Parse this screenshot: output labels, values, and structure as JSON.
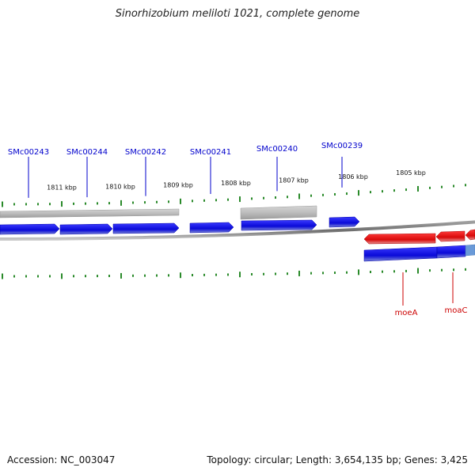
{
  "title": "Sinorhizobium meliloti 1021, complete genome",
  "footer": {
    "accession": "Accession: NC_003047",
    "summary": "Topology: circular; Length: 3,654,135 bp; Genes: 3,425"
  },
  "colors": {
    "forward_gene": "#1a1ae6",
    "reverse_gene": "#e61414",
    "tick": "#2a8a2a",
    "backbone": "#808080",
    "other_feature": "#b8b8b8",
    "label_forward": "#0000cc",
    "label_reverse": "#cc0000"
  },
  "scale_labels": [
    {
      "kbp": 1811,
      "text": "1811 kbp"
    },
    {
      "kbp": 1810,
      "text": "1810 kbp"
    },
    {
      "kbp": 1809,
      "text": "1809 kbp"
    },
    {
      "kbp": 1808,
      "text": "1808 kbp"
    },
    {
      "kbp": 1807,
      "text": "1807 kbp"
    },
    {
      "kbp": 1806,
      "text": "1806 kbp"
    },
    {
      "kbp": 1805,
      "text": "1805 kbp"
    }
  ],
  "genes_forward": [
    {
      "name": "SMc00243"
    },
    {
      "name": "SMc00244"
    },
    {
      "name": "SMc00242"
    },
    {
      "name": "SMc00241"
    },
    {
      "name": "SMc00240"
    },
    {
      "name": "SMc00239"
    }
  ],
  "genes_reverse": [
    {
      "name": "moeA"
    },
    {
      "name": "moaC"
    }
  ]
}
